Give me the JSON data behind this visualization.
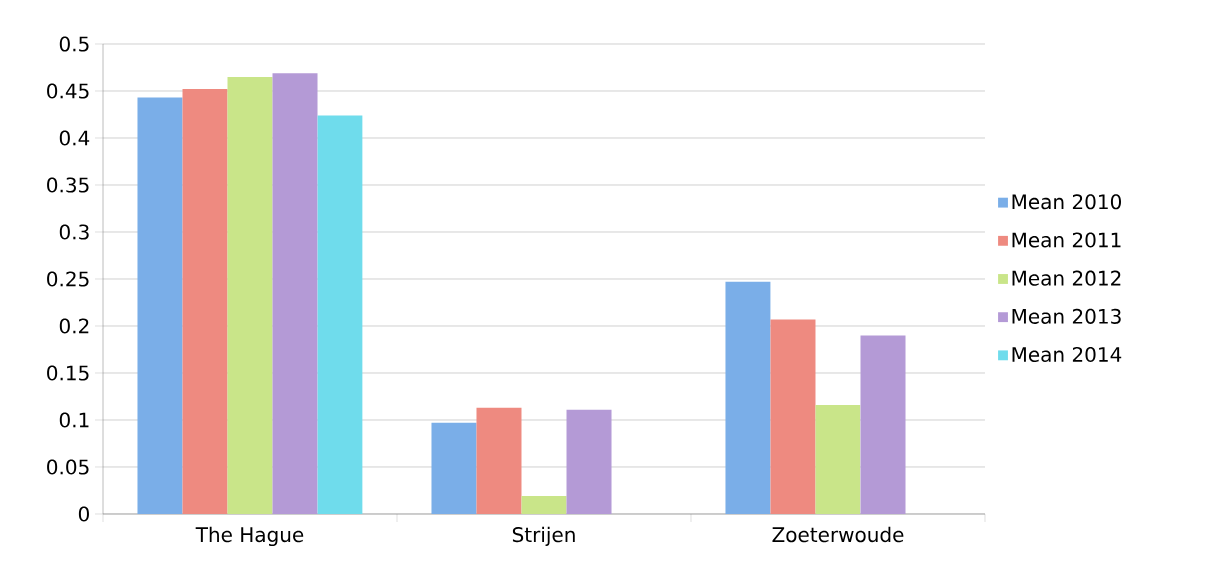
{
  "chart_data": {
    "type": "bar",
    "categories": [
      "The Hague",
      "Strijen",
      "Zoeterwoude"
    ],
    "series": [
      {
        "name": "Mean 2010",
        "color": "#7aaee8",
        "values": [
          0.443,
          0.097,
          0.247
        ]
      },
      {
        "name": "Mean 2011",
        "color": "#ee8a80",
        "values": [
          0.452,
          0.113,
          0.207
        ]
      },
      {
        "name": "Mean 2012",
        "color": "#c9e589",
        "values": [
          0.465,
          0.019,
          0.116
        ]
      },
      {
        "name": "Mean 2013",
        "color": "#b49ad6",
        "values": [
          0.469,
          0.111,
          0.19
        ]
      },
      {
        "name": "Mean 2014",
        "color": "#6fdcec",
        "values": [
          0.424,
          null,
          null
        ]
      }
    ],
    "ylim": [
      0,
      0.5
    ],
    "yticks": [
      0,
      0.05,
      0.1,
      0.15,
      0.2,
      0.25,
      0.3,
      0.35,
      0.4,
      0.45,
      0.5
    ],
    "grid": "y",
    "legend": "right"
  }
}
